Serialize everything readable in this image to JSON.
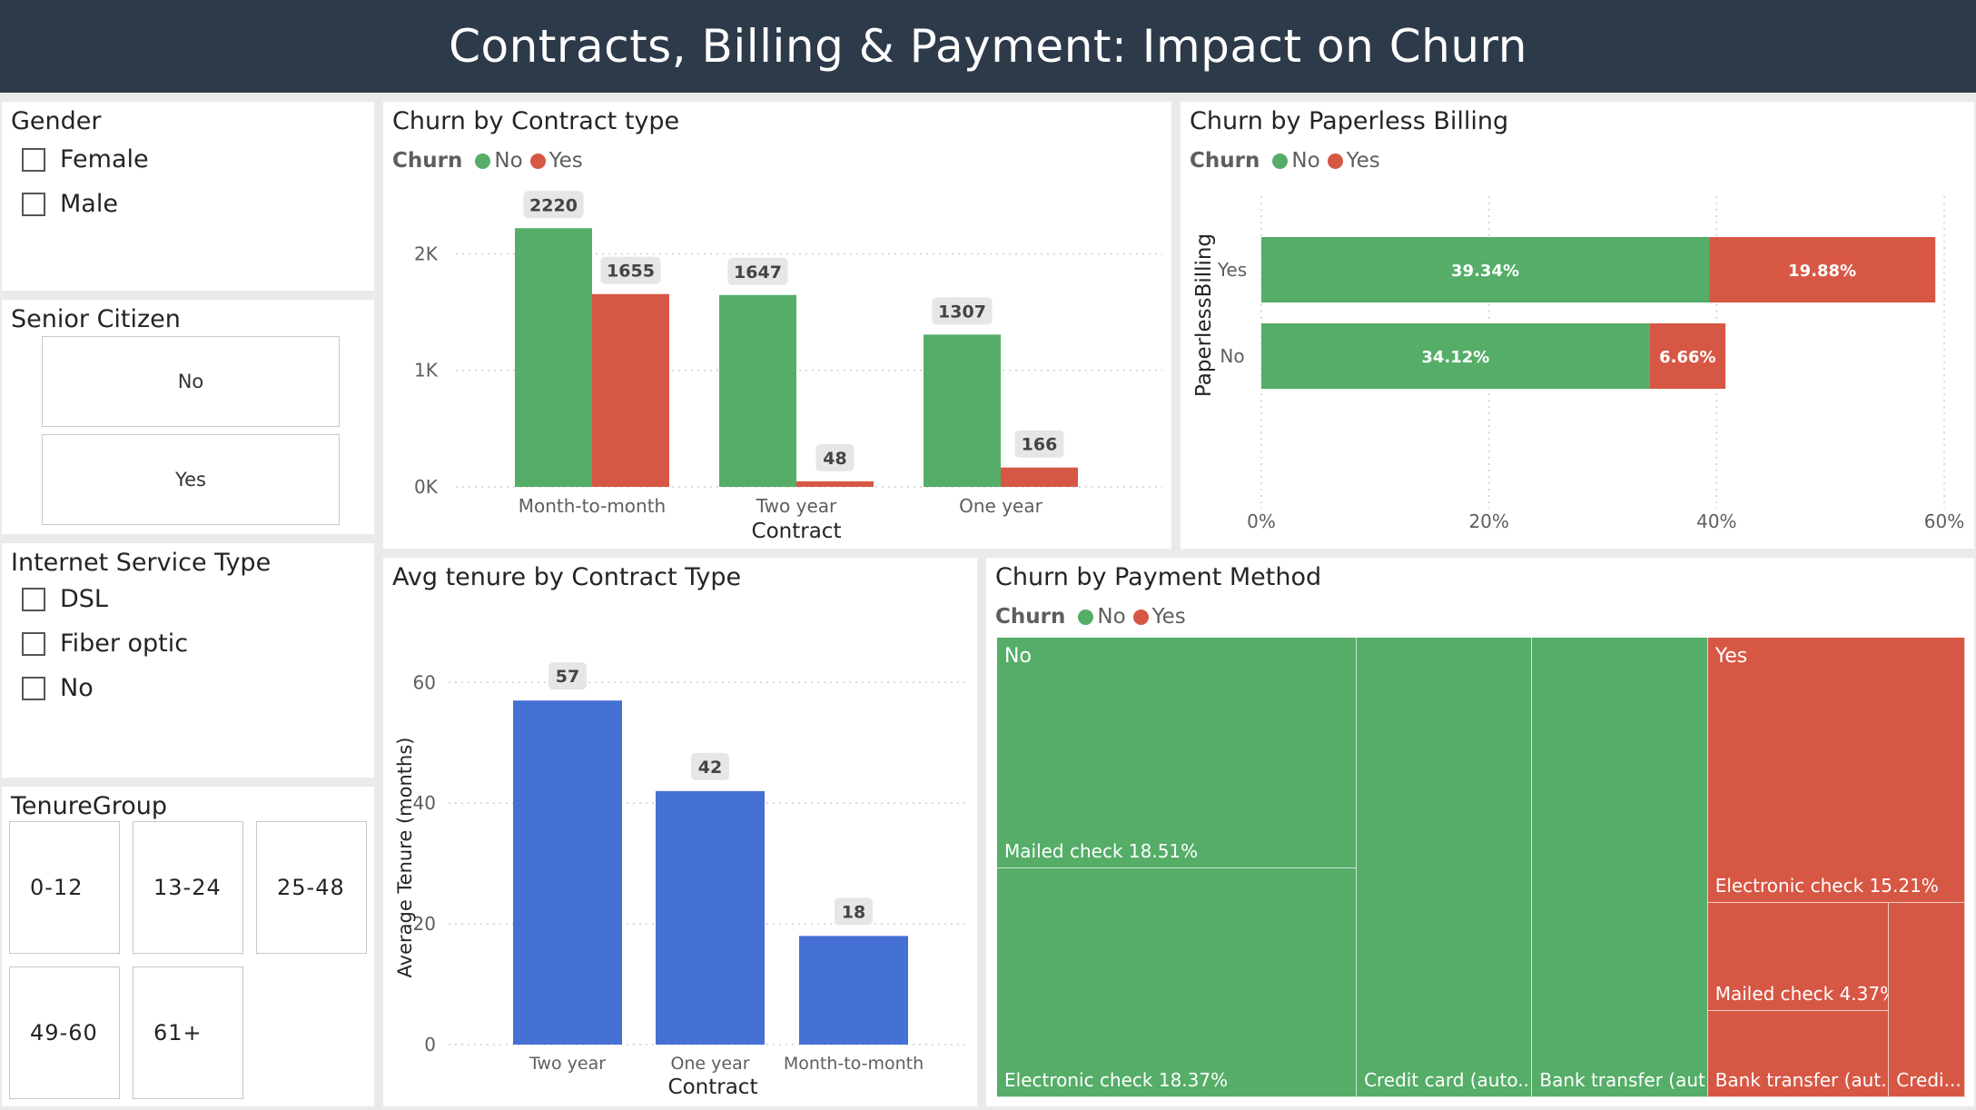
{
  "header": {
    "title": "Contracts, Billing & Payment: Impact on Churn"
  },
  "colors": {
    "no": "#55ad68",
    "yes": "#d75745",
    "blue": "#4570d4",
    "header_bg": "#2d3a4a"
  },
  "slicers": {
    "gender": {
      "title": "Gender",
      "options": [
        "Female",
        "Male"
      ]
    },
    "senior": {
      "title": "Senior Citizen",
      "options": [
        "No",
        "Yes"
      ]
    },
    "internet": {
      "title": "Internet Service Type",
      "options": [
        "DSL",
        "Fiber optic",
        "No"
      ]
    },
    "tenure": {
      "title": "TenureGroup",
      "options": [
        "0-12",
        "13-24",
        "25-48",
        "49-60",
        "61+"
      ]
    }
  },
  "legend": {
    "title": "Churn",
    "no": "No",
    "yes": "Yes"
  },
  "chart_data": [
    {
      "id": "contract",
      "type": "bar",
      "title": "Churn by Contract type",
      "xlabel": "Contract",
      "ylabel": "",
      "categories": [
        "Month-to-month",
        "Two year",
        "One year"
      ],
      "series": [
        {
          "name": "No",
          "values": [
            2220,
            1647,
            1307
          ]
        },
        {
          "name": "Yes",
          "values": [
            1655,
            48,
            166
          ]
        }
      ],
      "ylim": [
        0,
        2300
      ],
      "yticks": [
        0,
        1000,
        2000
      ],
      "ytick_labels": [
        "0K",
        "1K",
        "2K"
      ],
      "legend_title": "Churn",
      "grid": true
    },
    {
      "id": "paperless",
      "type": "bar",
      "orientation": "horizontal-stacked",
      "title": "Churn by Paperless Billing",
      "ylabel": "PaperlessBilling",
      "categories": [
        "Yes",
        "No"
      ],
      "series": [
        {
          "name": "No",
          "values": [
            39.34,
            34.12
          ],
          "labels": [
            "39.34%",
            "34.12%"
          ]
        },
        {
          "name": "Yes",
          "values": [
            19.88,
            6.66
          ],
          "labels": [
            "19.88%",
            "6.66%"
          ]
        }
      ],
      "xlim": [
        0,
        60
      ],
      "xticks": [
        0,
        20,
        40,
        60
      ],
      "xtick_labels": [
        "0%",
        "20%",
        "40%",
        "60%"
      ],
      "legend_title": "Churn",
      "grid": true
    },
    {
      "id": "tenure",
      "type": "bar",
      "title": "Avg tenure by Contract Type",
      "xlabel": "Contract",
      "ylabel": "Average Tenure (months)",
      "categories": [
        "Two year",
        "One year",
        "Month-to-month"
      ],
      "values": [
        57,
        42,
        18
      ],
      "ylim": [
        0,
        62
      ],
      "yticks": [
        0,
        20,
        40,
        60
      ],
      "grid": true
    },
    {
      "id": "payment",
      "type": "treemap",
      "title": "Churn by Payment Method",
      "legend_title": "Churn",
      "groups": [
        {
          "name": "No",
          "items": [
            {
              "name": "Mailed check",
              "value": 18.51,
              "label": "Mailed check 18.51%"
            },
            {
              "name": "Electronic check",
              "value": 18.37,
              "label": "Electronic check 18.37%"
            },
            {
              "name": "Credit card (automatic)",
              "value": 18.0,
              "label": "Credit card (auto..."
            },
            {
              "name": "Bank transfer (automatic)",
              "value": 18.0,
              "label": "Bank transfer (aut..."
            }
          ]
        },
        {
          "name": "Yes",
          "items": [
            {
              "name": "Electronic check",
              "value": 15.21,
              "label": "Electronic check 15.21%"
            },
            {
              "name": "Mailed check",
              "value": 4.37,
              "label": "Mailed check 4.37%"
            },
            {
              "name": "Bank transfer (automatic)",
              "value": 3.5,
              "label": "Bank transfer (aut..."
            },
            {
              "name": "Credit card (automatic)",
              "value": 3.3,
              "label": "Credi..."
            }
          ]
        }
      ]
    }
  ]
}
